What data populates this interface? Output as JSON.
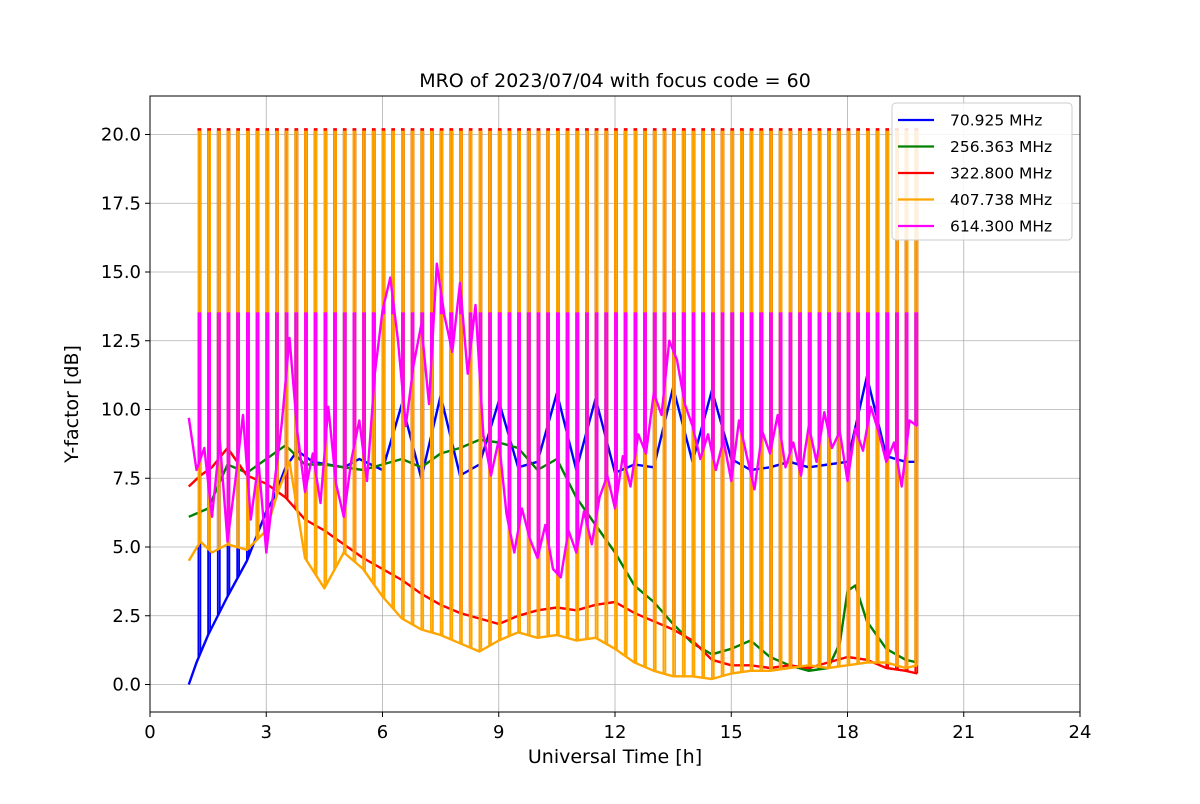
{
  "chart_data": {
    "type": "line",
    "title": "MRO of 2023/07/04 with focus code = 60",
    "xlabel": "Universal Time [h]",
    "ylabel": "Y-factor [dB]",
    "xlim": [
      0,
      24
    ],
    "ylim": [
      -1.0,
      21.4
    ],
    "xticks": [
      0,
      3,
      6,
      9,
      12,
      15,
      18,
      21,
      24
    ],
    "xtick_labels": [
      "0",
      "3",
      "6",
      "9",
      "12",
      "15",
      "18",
      "21",
      "24"
    ],
    "yticks": [
      0.0,
      2.5,
      5.0,
      7.5,
      10.0,
      12.5,
      15.0,
      17.5,
      20.0
    ],
    "ytick_labels": [
      "0.0",
      "2.5",
      "5.0",
      "7.5",
      "10.0",
      "12.5",
      "15.0",
      "17.5",
      "20.0"
    ],
    "grid": true,
    "legend_position": "top-right",
    "calibration_pulses": {
      "start_h": 1.25,
      "end_h": 19.75,
      "period_h": 0.25,
      "width_h": 0.05,
      "peak_yfactor_db": 20.2,
      "series_peaks_db": {
        "70.925 MHz": 13.5,
        "256.363 MHz": 20.1,
        "322.800 MHz": 20.2,
        "407.738 MHz": 20.1,
        "614.300 MHz": 13.5
      }
    },
    "series": [
      {
        "name": " 70.925 MHz",
        "color": "#0000ff",
        "x": [
          1.0,
          1.2,
          1.5,
          2.0,
          2.5,
          3.0,
          3.2,
          3.5,
          3.8,
          4.2,
          4.6,
          5.0,
          5.4,
          5.7,
          6.0,
          6.5,
          7.0,
          7.5,
          8.0,
          8.5,
          9.0,
          9.5,
          10.0,
          10.5,
          11.0,
          11.5,
          12.0,
          12.5,
          13.0,
          13.5,
          14.0,
          14.5,
          15.0,
          15.5,
          16.0,
          16.5,
          17.0,
          17.5,
          18.0,
          18.5,
          19.0,
          19.5,
          19.8
        ],
        "y": [
          0.0,
          0.8,
          1.8,
          3.2,
          4.5,
          6.3,
          6.8,
          7.9,
          8.5,
          8.1,
          8.0,
          7.9,
          8.2,
          8.0,
          7.8,
          10.2,
          7.5,
          10.5,
          7.6,
          8.0,
          10.3,
          7.9,
          8.1,
          10.6,
          7.8,
          10.4,
          7.7,
          8.0,
          7.9,
          10.8,
          8.1,
          10.7,
          8.2,
          7.8,
          7.9,
          8.1,
          7.9,
          8.0,
          8.1,
          11.2,
          8.3,
          8.1,
          8.1
        ]
      },
      {
        "name": "256.363 MHz",
        "color": "#008000",
        "x": [
          1.0,
          1.5,
          2.0,
          2.5,
          3.0,
          3.5,
          4.0,
          4.5,
          5.0,
          5.5,
          6.0,
          6.5,
          7.0,
          7.5,
          8.0,
          8.5,
          9.0,
          9.5,
          10.0,
          10.5,
          11.0,
          11.5,
          12.0,
          12.5,
          13.0,
          13.5,
          14.0,
          14.5,
          15.0,
          15.5,
          16.0,
          16.5,
          17.0,
          17.5,
          17.8,
          18.0,
          18.2,
          18.5,
          19.0,
          19.5,
          19.8
        ],
        "y": [
          6.1,
          6.4,
          8.0,
          7.7,
          8.2,
          8.7,
          8.0,
          8.0,
          7.9,
          7.8,
          8.0,
          8.2,
          7.9,
          8.4,
          8.6,
          8.9,
          8.8,
          8.6,
          7.8,
          8.2,
          6.8,
          5.8,
          4.8,
          3.6,
          3.0,
          2.2,
          1.5,
          1.1,
          1.3,
          1.6,
          1.0,
          0.7,
          0.5,
          0.6,
          1.5,
          3.4,
          3.6,
          2.3,
          1.3,
          0.9,
          0.8
        ]
      },
      {
        "name": "322.800 MHz",
        "color": "#ff0000",
        "x": [
          1.0,
          1.3,
          1.6,
          2.0,
          2.5,
          3.0,
          3.5,
          4.0,
          4.5,
          5.0,
          5.5,
          6.0,
          6.5,
          7.0,
          7.5,
          8.0,
          8.5,
          9.0,
          9.5,
          10.0,
          10.5,
          11.0,
          11.5,
          12.0,
          12.5,
          13.0,
          13.5,
          14.0,
          14.5,
          15.0,
          15.5,
          16.0,
          16.5,
          17.0,
          17.5,
          18.0,
          18.5,
          19.0,
          19.5,
          19.8
        ],
        "y": [
          7.2,
          7.6,
          7.9,
          8.6,
          7.6,
          7.3,
          6.8,
          6.0,
          5.6,
          5.1,
          4.6,
          4.2,
          3.8,
          3.3,
          2.9,
          2.6,
          2.4,
          2.2,
          2.5,
          2.7,
          2.8,
          2.7,
          2.9,
          3.0,
          2.6,
          2.3,
          2.0,
          1.6,
          0.9,
          0.7,
          0.7,
          0.6,
          0.7,
          0.6,
          0.8,
          1.0,
          0.9,
          0.6,
          0.5,
          0.4
        ]
      },
      {
        "name": "407.738 MHz",
        "color": "#ffa500",
        "x": [
          1.0,
          1.3,
          1.6,
          2.0,
          2.5,
          3.0,
          3.3,
          3.6,
          4.0,
          4.5,
          5.0,
          5.5,
          6.0,
          6.5,
          7.0,
          7.5,
          8.0,
          8.5,
          9.0,
          9.5,
          10.0,
          10.5,
          11.0,
          11.5,
          12.0,
          12.5,
          13.0,
          13.5,
          14.0,
          14.5,
          15.0,
          15.5,
          16.0,
          16.5,
          17.0,
          17.5,
          18.0,
          18.5,
          19.0,
          19.5,
          19.8
        ],
        "y": [
          4.5,
          5.2,
          4.8,
          5.1,
          4.9,
          5.6,
          7.0,
          8.1,
          4.6,
          3.5,
          4.8,
          4.2,
          3.2,
          2.4,
          2.0,
          1.8,
          1.5,
          1.2,
          1.6,
          1.9,
          1.7,
          1.8,
          1.6,
          1.7,
          1.3,
          0.8,
          0.5,
          0.3,
          0.3,
          0.2,
          0.4,
          0.5,
          0.5,
          0.6,
          0.7,
          0.6,
          0.7,
          0.8,
          0.8,
          0.6,
          0.7
        ]
      },
      {
        "name": "614.300 MHz",
        "color": "#ff00ff",
        "x": [
          1.0,
          1.2,
          1.4,
          1.6,
          1.8,
          2.0,
          2.2,
          2.4,
          2.6,
          2.8,
          3.0,
          3.2,
          3.4,
          3.6,
          3.8,
          4.0,
          4.2,
          4.4,
          4.6,
          4.8,
          5.0,
          5.2,
          5.4,
          5.6,
          5.8,
          6.0,
          6.2,
          6.4,
          6.6,
          6.8,
          7.0,
          7.2,
          7.4,
          7.6,
          7.8,
          8.0,
          8.2,
          8.4,
          8.6,
          8.8,
          9.0,
          9.2,
          9.4,
          9.6,
          9.8,
          10.0,
          10.2,
          10.4,
          10.6,
          10.8,
          11.0,
          11.2,
          11.4,
          11.6,
          11.8,
          12.0,
          12.2,
          12.4,
          12.6,
          12.8,
          13.0,
          13.2,
          13.4,
          13.6,
          13.8,
          14.0,
          14.2,
          14.4,
          14.6,
          14.8,
          15.0,
          15.2,
          15.4,
          15.6,
          15.8,
          16.0,
          16.2,
          16.4,
          16.6,
          16.8,
          17.0,
          17.2,
          17.4,
          17.6,
          17.8,
          18.0,
          18.2,
          18.4,
          18.6,
          18.8,
          19.0,
          19.2,
          19.4,
          19.6,
          19.8
        ],
        "y": [
          9.7,
          7.8,
          8.6,
          6.1,
          8.9,
          5.2,
          7.4,
          9.8,
          6.0,
          8.1,
          4.8,
          7.2,
          9.5,
          12.6,
          9.2,
          7.0,
          8.4,
          6.6,
          10.1,
          7.3,
          6.1,
          8.2,
          9.6,
          7.4,
          11.3,
          13.6,
          14.8,
          12.5,
          9.4,
          11.6,
          13.1,
          10.2,
          15.3,
          13.4,
          12.1,
          14.6,
          11.3,
          13.8,
          9.1,
          7.6,
          8.9,
          6.2,
          4.8,
          6.4,
          5.3,
          4.6,
          5.8,
          4.2,
          3.9,
          5.6,
          4.8,
          6.3,
          5.1,
          6.8,
          7.6,
          6.4,
          8.3,
          7.2,
          9.1,
          8.4,
          10.6,
          9.8,
          12.5,
          11.8,
          10.2,
          9.4,
          8.2,
          9.1,
          7.8,
          8.9,
          7.4,
          9.6,
          8.3,
          7.1,
          9.2,
          8.4,
          9.8,
          7.9,
          8.8,
          7.6,
          9.4,
          8.1,
          9.9,
          8.6,
          9.2,
          7.4,
          9.3,
          8.5,
          10.1,
          9.2,
          8.1,
          8.8,
          7.2,
          9.6,
          9.4
        ]
      }
    ]
  }
}
